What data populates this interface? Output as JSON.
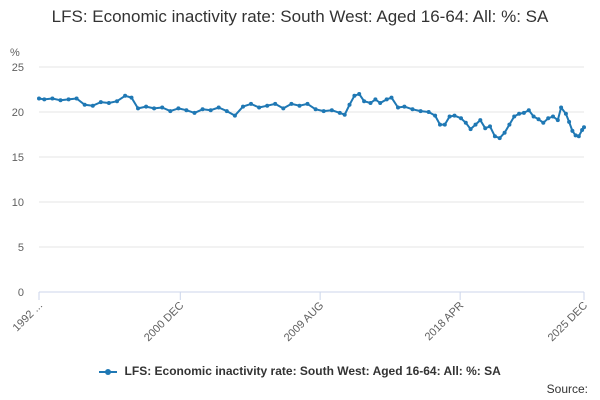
{
  "chart_data": {
    "type": "line",
    "title": "LFS: Economic inactivity rate: South West: Aged 16-64: All: %: SA",
    "ylabel": "%",
    "ylim": [
      0,
      25
    ],
    "yticks": [
      0,
      5,
      10,
      15,
      20,
      25
    ],
    "xlim": [
      1992.17,
      2025.92
    ],
    "xticks": [
      {
        "value": 1992.17,
        "label": "1992 ..."
      },
      {
        "value": 2000.92,
        "label": "2000 DEC"
      },
      {
        "value": 2009.58,
        "label": "2009 AUG"
      },
      {
        "value": 2018.25,
        "label": "2018 APR"
      },
      {
        "value": 2025.92,
        "label": "2025 DEC"
      }
    ],
    "grid": true,
    "legend_position": "bottom",
    "series": [
      {
        "name": "LFS: Economic inactivity rate: South West: Aged 16-64: All: %: SA",
        "color": "#1f78b4",
        "points": [
          [
            1992.17,
            21.5
          ],
          [
            1992.5,
            21.4
          ],
          [
            1993.0,
            21.5
          ],
          [
            1993.5,
            21.3
          ],
          [
            1994.0,
            21.4
          ],
          [
            1994.5,
            21.5
          ],
          [
            1995.0,
            20.8
          ],
          [
            1995.5,
            20.7
          ],
          [
            1996.0,
            21.1
          ],
          [
            1996.5,
            21.0
          ],
          [
            1997.0,
            21.2
          ],
          [
            1997.5,
            21.8
          ],
          [
            1997.9,
            21.6
          ],
          [
            1998.3,
            20.4
          ],
          [
            1998.8,
            20.6
          ],
          [
            1999.3,
            20.4
          ],
          [
            1999.8,
            20.5
          ],
          [
            2000.3,
            20.1
          ],
          [
            2000.8,
            20.4
          ],
          [
            2001.3,
            20.2
          ],
          [
            2001.8,
            19.9
          ],
          [
            2002.3,
            20.3
          ],
          [
            2002.8,
            20.2
          ],
          [
            2003.3,
            20.5
          ],
          [
            2003.8,
            20.1
          ],
          [
            2004.3,
            19.6
          ],
          [
            2004.8,
            20.6
          ],
          [
            2005.3,
            20.9
          ],
          [
            2005.8,
            20.5
          ],
          [
            2006.3,
            20.7
          ],
          [
            2006.8,
            20.9
          ],
          [
            2007.3,
            20.4
          ],
          [
            2007.8,
            20.9
          ],
          [
            2008.3,
            20.7
          ],
          [
            2008.8,
            20.9
          ],
          [
            2009.3,
            20.3
          ],
          [
            2009.8,
            20.1
          ],
          [
            2010.3,
            20.2
          ],
          [
            2010.8,
            19.9
          ],
          [
            2011.1,
            19.7
          ],
          [
            2011.4,
            20.8
          ],
          [
            2011.7,
            21.8
          ],
          [
            2012.0,
            22.0
          ],
          [
            2012.3,
            21.2
          ],
          [
            2012.7,
            21.0
          ],
          [
            2013.0,
            21.4
          ],
          [
            2013.3,
            21.0
          ],
          [
            2013.7,
            21.4
          ],
          [
            2014.0,
            21.6
          ],
          [
            2014.4,
            20.5
          ],
          [
            2014.8,
            20.6
          ],
          [
            2015.3,
            20.3
          ],
          [
            2015.8,
            20.1
          ],
          [
            2016.3,
            20.0
          ],
          [
            2016.7,
            19.6
          ],
          [
            2017.0,
            18.6
          ],
          [
            2017.3,
            18.6
          ],
          [
            2017.6,
            19.5
          ],
          [
            2017.9,
            19.6
          ],
          [
            2018.3,
            19.3
          ],
          [
            2018.6,
            18.8
          ],
          [
            2018.9,
            18.1
          ],
          [
            2019.2,
            18.6
          ],
          [
            2019.5,
            19.1
          ],
          [
            2019.8,
            18.2
          ],
          [
            2020.1,
            18.4
          ],
          [
            2020.4,
            17.3
          ],
          [
            2020.7,
            17.1
          ],
          [
            2021.0,
            17.7
          ],
          [
            2021.3,
            18.6
          ],
          [
            2021.6,
            19.5
          ],
          [
            2021.9,
            19.8
          ],
          [
            2022.2,
            19.9
          ],
          [
            2022.5,
            20.2
          ],
          [
            2022.8,
            19.5
          ],
          [
            2023.1,
            19.2
          ],
          [
            2023.4,
            18.8
          ],
          [
            2023.7,
            19.3
          ],
          [
            2024.0,
            19.5
          ],
          [
            2024.3,
            19.1
          ],
          [
            2024.5,
            20.5
          ],
          [
            2024.8,
            19.8
          ],
          [
            2025.0,
            18.9
          ],
          [
            2025.2,
            17.9
          ],
          [
            2025.4,
            17.4
          ],
          [
            2025.6,
            17.3
          ],
          [
            2025.8,
            18.0
          ],
          [
            2025.92,
            18.3
          ]
        ]
      }
    ]
  },
  "legend_label": "LFS: Economic inactivity rate: South West: Aged 16-64: All: %: SA",
  "source_label": "Source:"
}
